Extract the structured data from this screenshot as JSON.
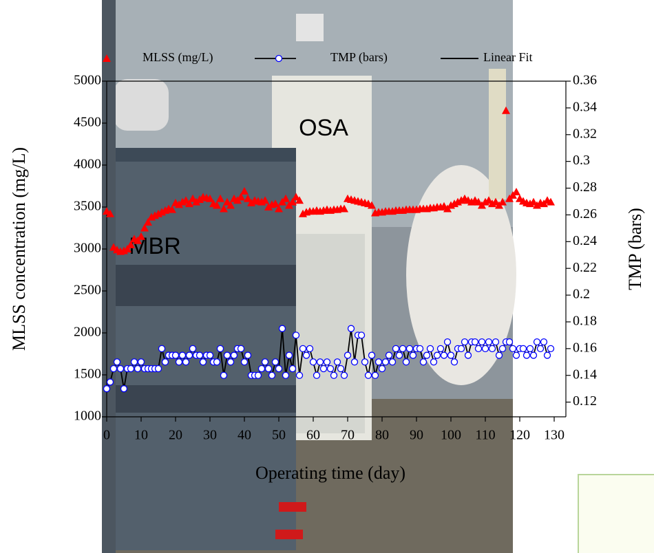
{
  "chart_data": {
    "type": "dual-axis-scatter-line",
    "xlabel": "Operating time (day)",
    "ylabel": "MLSS concentration (mg/L)",
    "y2label": "TMP (bars)",
    "annotations": [
      "OSA",
      "MBR"
    ],
    "xlim": [
      0,
      133.4
    ],
    "xticks": [
      0,
      10,
      20,
      30,
      40,
      50,
      60,
      70,
      80,
      90,
      100,
      110,
      120,
      130
    ],
    "ylim": [
      1000,
      5000
    ],
    "yticks": [
      1000,
      1500,
      2000,
      2500,
      3000,
      3500,
      4000,
      4500,
      5000
    ],
    "y2lim": [
      0.109,
      0.36
    ],
    "y2ticks": [
      0.12,
      0.14,
      0.16,
      0.18,
      0.2,
      0.22,
      0.24,
      0.26,
      0.28,
      0.3,
      0.32,
      0.34,
      0.36
    ],
    "x": [
      0,
      1,
      2,
      3,
      4,
      5,
      6,
      7,
      8,
      9,
      10,
      11,
      12,
      13,
      14,
      15,
      16,
      17,
      18,
      19,
      20,
      21,
      22,
      23,
      24,
      25,
      26,
      27,
      28,
      29,
      30,
      31,
      32,
      33,
      34,
      35,
      36,
      37,
      38,
      39,
      40,
      41,
      42,
      43,
      44,
      45,
      46,
      47,
      48,
      49,
      50,
      51,
      52,
      53,
      54,
      55,
      56,
      57,
      58,
      59,
      60,
      61,
      62,
      63,
      64,
      65,
      66,
      67,
      68,
      69,
      70,
      71,
      72,
      73,
      74,
      75,
      76,
      77,
      78,
      79,
      80,
      81,
      82,
      83,
      84,
      85,
      86,
      87,
      88,
      89,
      90,
      91,
      92,
      93,
      94,
      95,
      96,
      97,
      98,
      99,
      100,
      101,
      102,
      103,
      104,
      105,
      106,
      107,
      108,
      109,
      110,
      111,
      112,
      113,
      114,
      115,
      116,
      117,
      118,
      119,
      120,
      121,
      122,
      123,
      124,
      125,
      126,
      127,
      128,
      129
    ],
    "series": [
      {
        "name": "MLSS (mg/L)",
        "color": "#ff0000",
        "marker": "triangle",
        "axis": "y",
        "values": [
          3450,
          3420,
          3020,
          2990,
          2970,
          2980,
          3000,
          3050,
          3120,
          3100,
          3150,
          3250,
          3320,
          3380,
          3400,
          3420,
          3440,
          3460,
          3480,
          3470,
          3550,
          3530,
          3560,
          3580,
          3540,
          3600,
          3560,
          3590,
          3620,
          3610,
          3600,
          3540,
          3520,
          3600,
          3480,
          3560,
          3520,
          3600,
          3580,
          3620,
          3690,
          3600,
          3550,
          3580,
          3570,
          3560,
          3580,
          3500,
          3530,
          3540,
          3480,
          3560,
          3600,
          3520,
          3560,
          3620,
          3580,
          3420,
          3440,
          3450,
          3450,
          3460,
          3450,
          3460,
          3470,
          3460,
          3470,
          3470,
          3480,
          3480,
          3600,
          3590,
          3580,
          3570,
          3560,
          3550,
          3540,
          3520,
          3430,
          3440,
          3440,
          3450,
          3450,
          3450,
          3460,
          3460,
          3460,
          3470,
          3470,
          3470,
          3470,
          3480,
          3480,
          3480,
          3490,
          3490,
          3500,
          3500,
          3510,
          3480,
          3520,
          3540,
          3560,
          3580,
          3600,
          3580,
          3560,
          3580,
          3560,
          3520,
          3560,
          3580,
          3540,
          3560,
          3520,
          3560,
          4650,
          3600,
          3640,
          3680,
          3600,
          3570,
          3550,
          3540,
          3560,
          3520,
          3550,
          3540,
          3580,
          3560
        ]
      },
      {
        "name": "TMP (bars)",
        "color": "#0000ff",
        "line_color": "#000000",
        "marker": "circle",
        "axis": "y2",
        "values": [
          0.13,
          0.135,
          0.145,
          0.15,
          0.145,
          0.13,
          0.145,
          0.145,
          0.15,
          0.145,
          0.15,
          0.145,
          0.145,
          0.145,
          0.145,
          0.145,
          0.16,
          0.15,
          0.155,
          0.155,
          0.155,
          0.15,
          0.155,
          0.15,
          0.155,
          0.16,
          0.155,
          0.155,
          0.15,
          0.155,
          0.155,
          0.15,
          0.15,
          0.16,
          0.14,
          0.155,
          0.15,
          0.155,
          0.16,
          0.16,
          0.15,
          0.155,
          0.14,
          0.14,
          0.14,
          0.145,
          0.15,
          0.145,
          0.14,
          0.15,
          0.145,
          0.175,
          0.14,
          0.155,
          0.145,
          0.17,
          0.14,
          0.16,
          0.155,
          0.16,
          0.15,
          0.14,
          0.15,
          0.145,
          0.15,
          0.145,
          0.14,
          0.15,
          0.145,
          0.14,
          0.155,
          0.175,
          0.15,
          0.17,
          0.17,
          0.15,
          0.14,
          0.155,
          0.14,
          0.15,
          0.145,
          0.15,
          0.155,
          0.15,
          0.16,
          0.155,
          0.16,
          0.15,
          0.16,
          0.155,
          0.16,
          0.16,
          0.15,
          0.155,
          0.16,
          0.15,
          0.155,
          0.16,
          0.155,
          0.165,
          0.155,
          0.15,
          0.16,
          0.16,
          0.165,
          0.155,
          0.165,
          0.165,
          0.16,
          0.165,
          0.16,
          0.165,
          0.16,
          0.165,
          0.155,
          0.16,
          0.165,
          0.165,
          0.16,
          0.155,
          0.16,
          0.16,
          0.155,
          0.16,
          0.155,
          0.165,
          0.16,
          0.165,
          0.155,
          0.16
        ]
      },
      {
        "name": "Linear Fit",
        "color": "#000000",
        "marker": "none",
        "axis": "y",
        "values": []
      }
    ]
  }
}
